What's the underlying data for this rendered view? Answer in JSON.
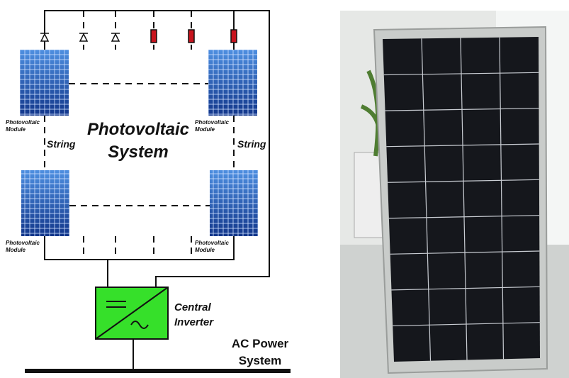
{
  "diagram": {
    "title": [
      "Photovoltaic",
      "System"
    ],
    "strings": [
      "String",
      "String"
    ],
    "modules": [
      [
        "Photovoltaic",
        "Module"
      ],
      [
        "Photovoltaic",
        "Module"
      ],
      [
        "Photovoltaic",
        "Module"
      ],
      [
        "Photovoltaic",
        "Module"
      ]
    ],
    "inverter": [
      "Central",
      "Inverter"
    ],
    "grid": [
      "AC Power",
      "System"
    ]
  }
}
